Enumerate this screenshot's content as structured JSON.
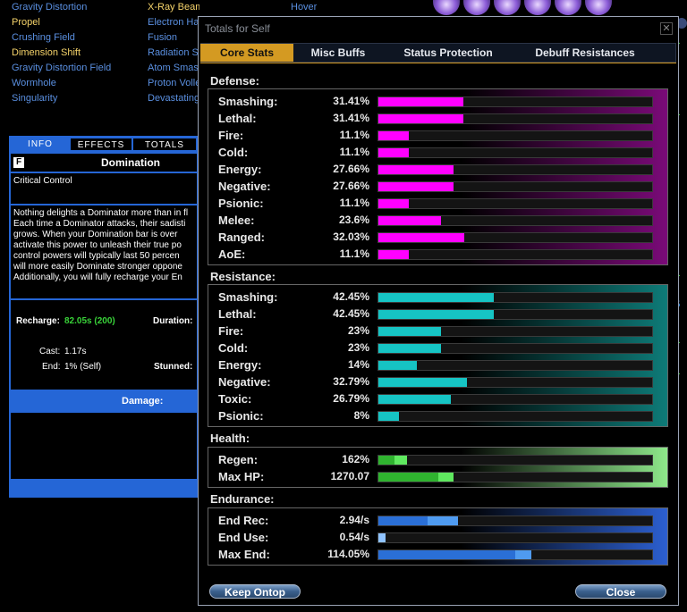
{
  "background": {
    "col1": [
      "Gravity Distortion",
      "Propel",
      "Crushing Field",
      "Dimension Shift",
      "Gravity Distortion Field",
      "Wormhole",
      "Singularity"
    ],
    "col1_colors": [
      "blue",
      "yellow",
      "blue",
      "yellow",
      "blue",
      "blue",
      "blue"
    ],
    "col2": [
      "X-Ray Beam",
      "Electron Haul",
      "Fusion",
      "Radiation Siphon",
      "Atom Smasher",
      "Proton Volley",
      "Devastating"
    ],
    "col2_colors": [
      "yellow",
      "blue",
      "blue",
      "blue",
      "blue",
      "blue",
      "blue"
    ],
    "col3": [
      "Hover"
    ]
  },
  "info": {
    "tabs": [
      "INFO",
      "EFFECTS",
      "TOTALS"
    ],
    "badge": "F",
    "power_name": "Domination",
    "short_desc": "Critical Control",
    "long_desc_lines": [
      "Nothing delights a Dominator more than in fl",
      "Each time a Dominator attacks, their sadisti",
      "grows. When your Domination bar is over",
      "activate this power to unleash their true po",
      "control powers will typically last 50 percen",
      "will more easily Dominate stronger oppone",
      "Additionally, you will fully recharge your En"
    ],
    "recharge_label": "Recharge:",
    "recharge_value": "82.05s (200)",
    "duration_label": "Duration:",
    "cast_label": "Cast:",
    "cast_value": "1.17s",
    "end_label": "End:",
    "end_value": "1% (Self)",
    "stunned_label": "Stunned:",
    "damage_label": "Damage:"
  },
  "window": {
    "title": "Totals for Self",
    "close_glyph": "✕",
    "tabs": [
      "Core Stats",
      "Misc Buffs",
      "Status Protection",
      "Debuff Resistances"
    ],
    "active_tab": 0,
    "buttons": {
      "keep_ontop": "Keep Ontop",
      "close": "Close"
    }
  },
  "sections": [
    {
      "id": "defense",
      "title": "Defense:",
      "fill_color": "#ff00ff",
      "panel_gradient": [
        "#000000",
        "#7a0a78"
      ],
      "rows": [
        {
          "label": "Smashing:",
          "value": "31.41%",
          "frac": 0.31
        },
        {
          "label": "Lethal:",
          "value": "31.41%",
          "frac": 0.31
        },
        {
          "label": "Fire:",
          "value": "11.1%",
          "frac": 0.11
        },
        {
          "label": "Cold:",
          "value": "11.1%",
          "frac": 0.11
        },
        {
          "label": "Energy:",
          "value": "27.66%",
          "frac": 0.275
        },
        {
          "label": "Negative:",
          "value": "27.66%",
          "frac": 0.275
        },
        {
          "label": "Psionic:",
          "value": "11.1%",
          "frac": 0.11
        },
        {
          "label": "Melee:",
          "value": "23.6%",
          "frac": 0.23
        },
        {
          "label": "Ranged:",
          "value": "32.03%",
          "frac": 0.315
        },
        {
          "label": "AoE:",
          "value": "11.1%",
          "frac": 0.11
        }
      ]
    },
    {
      "id": "resistance",
      "title": "Resistance:",
      "fill_color": "#16c4c4",
      "panel_gradient": [
        "#000000",
        "#0e7b78"
      ],
      "rows": [
        {
          "label": "Smashing:",
          "value": "42.45%",
          "frac": 0.42
        },
        {
          "label": "Lethal:",
          "value": "42.45%",
          "frac": 0.42
        },
        {
          "label": "Fire:",
          "value": "23%",
          "frac": 0.23
        },
        {
          "label": "Cold:",
          "value": "23%",
          "frac": 0.23
        },
        {
          "label": "Energy:",
          "value": "14%",
          "frac": 0.14
        },
        {
          "label": "Negative:",
          "value": "32.79%",
          "frac": 0.325
        },
        {
          "label": "Toxic:",
          "value": "26.79%",
          "frac": 0.265
        },
        {
          "label": "Psionic:",
          "value": "8%",
          "frac": 0.075
        }
      ]
    },
    {
      "id": "health",
      "title": "Health:",
      "fill_color": "#2fb32f",
      "panel_gradient": [
        "#000000",
        "#8ee88a"
      ],
      "rows": [
        {
          "label": "Regen:",
          "value": "162%",
          "frac": 0.06,
          "frac2": 0.105,
          "color2": "#5fe85f"
        },
        {
          "label": "Max HP:",
          "value": "1270.07",
          "frac": 0.22,
          "frac2": 0.275,
          "color2": "#5fe85f"
        }
      ]
    },
    {
      "id": "endurance",
      "title": "Endurance:",
      "fill_color": "#2a6fd6",
      "panel_gradient": [
        "#000000",
        "#2c5fd0"
      ],
      "rows": [
        {
          "label": "End Rec:",
          "value": "2.94/s",
          "frac": 0.18,
          "frac2": 0.29,
          "color2": "#4f9bf0"
        },
        {
          "label": "End Use:",
          "value": "0.54/s",
          "frac": 0.0,
          "frac2": 0.027,
          "color2": "#8fc3ff"
        },
        {
          "label": "Max End:",
          "value": "114.05%",
          "frac": 0.5,
          "frac2": 0.56,
          "color2": "#4f9bf0"
        }
      ]
    }
  ]
}
